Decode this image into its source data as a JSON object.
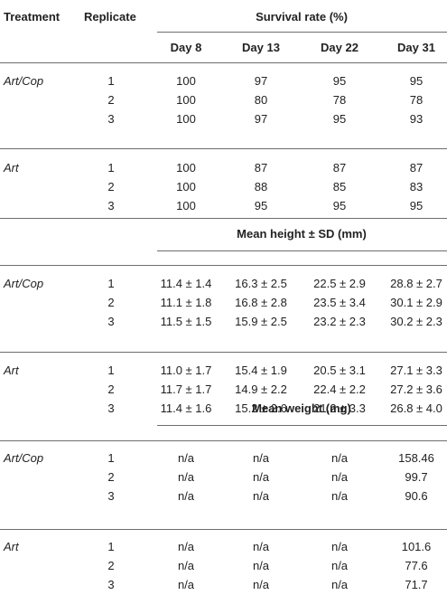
{
  "header": {
    "treatment": "Treatment",
    "replicate": "Replicate",
    "survival_title": "Survival rate (%)",
    "days": [
      "Day 8",
      "Day 13",
      "Day 22",
      "Day 31"
    ]
  },
  "sections": [
    {
      "title": "",
      "groups": [
        {
          "treatment": "Art/Cop",
          "rows": [
            {
              "rep": "1",
              "values": [
                "100",
                "97",
                "95",
                "95"
              ]
            },
            {
              "rep": "2",
              "values": [
                "100",
                "80",
                "78",
                "78"
              ]
            },
            {
              "rep": "3",
              "values": [
                "100",
                "97",
                "95",
                "93"
              ]
            }
          ]
        },
        {
          "treatment": "Art",
          "rows": [
            {
              "rep": "1",
              "values": [
                "100",
                "87",
                "87",
                "87"
              ]
            },
            {
              "rep": "2",
              "values": [
                "100",
                "88",
                "85",
                "83"
              ]
            },
            {
              "rep": "3",
              "values": [
                "100",
                "95",
                "95",
                "95"
              ]
            }
          ]
        }
      ]
    },
    {
      "title": "Mean height ± SD (mm)",
      "groups": [
        {
          "treatment": "Art/Cop",
          "rows": [
            {
              "rep": "1",
              "values": [
                "11.4 ± 1.4",
                "16.3 ± 2.5",
                "22.5 ± 2.9",
                "28.8 ± 2.7"
              ]
            },
            {
              "rep": "2",
              "values": [
                "11.1 ± 1.8",
                "16.8 ± 2.8",
                "23.5 ± 3.4",
                "30.1 ± 2.9"
              ]
            },
            {
              "rep": "3",
              "values": [
                "11.5 ± 1.5",
                "15.9 ± 2.5",
                "23.2 ± 2.3",
                "30.2 ± 2.3"
              ]
            }
          ]
        },
        {
          "treatment": "Art",
          "rows": [
            {
              "rep": "1",
              "values": [
                "11.0 ± 1.7",
                "15.4 ± 1.9",
                "20.5 ± 3.1",
                "27.1 ± 3.3"
              ]
            },
            {
              "rep": "2",
              "values": [
                "11.7 ± 1.7",
                "14.9 ± 2.2",
                "22.4 ± 2.2",
                "27.2 ± 3.6"
              ]
            },
            {
              "rep": "3",
              "values": [
                "11.4 ± 1.6",
                "15.2 ± 2.6",
                "21.2 ± 3.3",
                "26.8 ± 4.0"
              ]
            }
          ]
        }
      ]
    },
    {
      "title": "Mean weight (mg)",
      "groups": [
        {
          "treatment": "Art/Cop",
          "rows": [
            {
              "rep": "1",
              "values": [
                "n/a",
                "n/a",
                "n/a",
                "158.46"
              ]
            },
            {
              "rep": "2",
              "values": [
                "n/a",
                "n/a",
                "n/a",
                "99.7"
              ]
            },
            {
              "rep": "3",
              "values": [
                "n/a",
                "n/a",
                "n/a",
                "90.6"
              ]
            }
          ]
        },
        {
          "treatment": "Art",
          "rows": [
            {
              "rep": "1",
              "values": [
                "n/a",
                "n/a",
                "n/a",
                "101.6"
              ]
            },
            {
              "rep": "2",
              "values": [
                "n/a",
                "n/a",
                "n/a",
                "77.6"
              ]
            },
            {
              "rep": "3",
              "values": [
                "n/a",
                "n/a",
                "n/a",
                "71.7"
              ]
            }
          ]
        }
      ]
    }
  ]
}
